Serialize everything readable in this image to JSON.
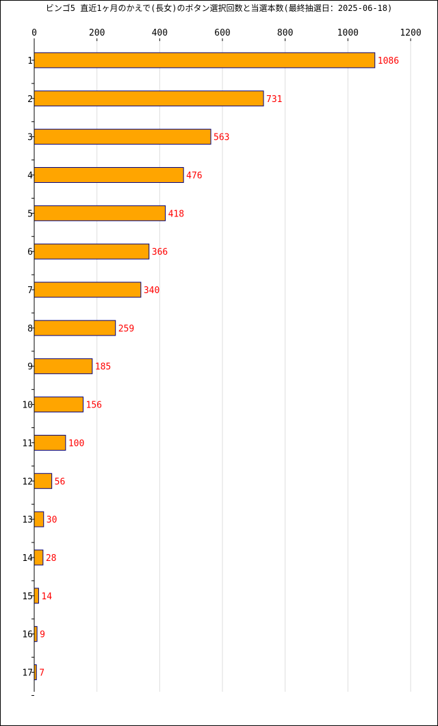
{
  "chart_data": {
    "type": "bar",
    "orientation": "horizontal",
    "title": "ビンゴ5 直近1ヶ月のかえで(長女)のボタン選択回数と当選本数(最終抽選日：2025-06-18)",
    "categories": [
      "1",
      "2",
      "3",
      "4",
      "5",
      "6",
      "7",
      "8",
      "9",
      "10",
      "11",
      "12",
      "13",
      "14",
      "15",
      "16",
      "17"
    ],
    "values": [
      1086,
      731,
      563,
      476,
      418,
      366,
      340,
      259,
      185,
      156,
      100,
      56,
      30,
      28,
      14,
      9,
      7
    ],
    "x_ticks": [
      0,
      200,
      400,
      600,
      800,
      1000,
      1200
    ],
    "xlim": [
      0,
      1200
    ],
    "xlabel": "",
    "ylabel": "",
    "grid": true,
    "bar_color": "#FFA500",
    "bar_edge_color": "#000080",
    "value_label_color": "#FF0000",
    "grid_color": "#DDDDDD"
  }
}
